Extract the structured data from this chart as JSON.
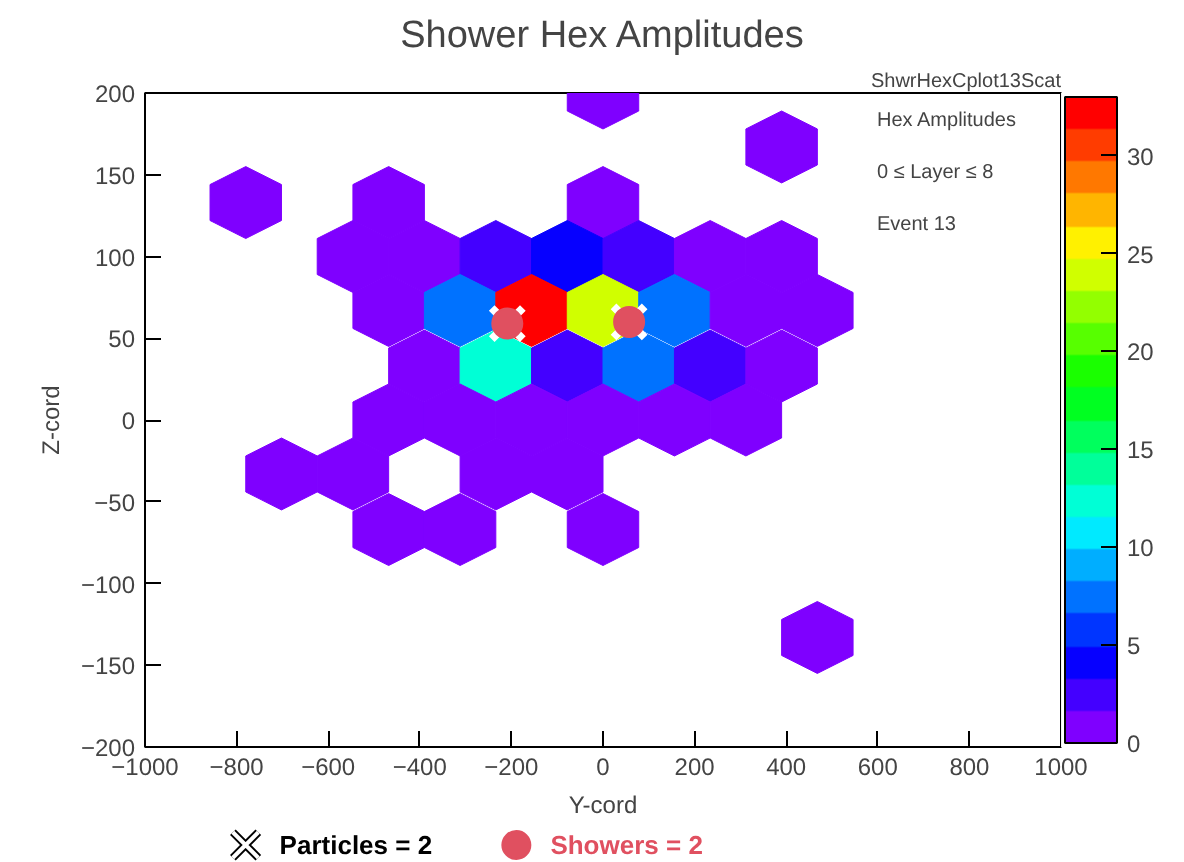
{
  "chart_data": {
    "type": "scatter",
    "title": "Shower Hex Amplitudes",
    "xlabel": "Y-cord",
    "ylabel": "Z-cord",
    "annotations": [
      "ShwrHexCplot13Scat",
      "Hex Amplitudes",
      "0 ≤ Layer ≤ 8",
      "Event 13"
    ],
    "xlim": [
      -1000,
      1000
    ],
    "xticks": [
      -1000,
      -800,
      -600,
      -400,
      -200,
      0,
      200,
      400,
      600,
      800,
      1000
    ],
    "ylim": [
      -200,
      200
    ],
    "yticks": [
      -200,
      -150,
      -100,
      -50,
      0,
      50,
      100,
      150,
      200
    ],
    "clim": [
      0,
      33
    ],
    "cticks": [
      0,
      5,
      10,
      15,
      20,
      25,
      30
    ],
    "legend": "bottom",
    "grid": false,
    "series": [
      {
        "type": "scatter",
        "x": [
          0,
          390,
          -780,
          -468,
          0,
          -546,
          -390,
          -234,
          -78,
          78,
          234,
          390,
          -468,
          -312,
          -156,
          0,
          156,
          312,
          468,
          -390,
          -234,
          -78,
          78,
          234,
          390,
          -468,
          -312,
          -156,
          0,
          156,
          312,
          -702,
          -546,
          -234,
          -78,
          -468,
          -312,
          0,
          468
        ],
        "values": [
          200,
          167,
          133,
          133,
          133,
          100,
          100,
          100,
          100,
          100,
          100,
          100,
          67,
          67,
          67,
          67,
          67,
          67,
          67,
          33,
          33,
          33,
          33,
          33,
          33,
          0,
          0,
          0,
          0,
          0,
          0,
          -33,
          -33,
          -33,
          -33,
          -67,
          -67,
          -67,
          -133
        ],
        "cvalues": [
          1,
          1,
          1,
          1,
          1,
          1,
          1,
          2.5,
          4,
          2.5,
          1,
          1,
          1,
          7.5,
          32,
          24,
          7.5,
          1,
          1,
          1,
          12.5,
          2.5,
          7.5,
          2.5,
          1,
          1,
          1,
          1,
          1,
          1,
          1,
          1,
          1,
          1,
          1,
          1,
          1,
          1,
          1
        ],
        "colors": [
          "#7f00ff",
          "#7f00ff",
          "#7f00ff",
          "#7f00ff",
          "#7f00ff",
          "#7f00ff",
          "#7f00ff",
          "#4300ff",
          "#0600ff",
          "#4300ff",
          "#7f00ff",
          "#7f00ff",
          "#7f00ff",
          "#0072ff",
          "#ff0000",
          "#d0ff00",
          "#0072ff",
          "#7f00ff",
          "#7f00ff",
          "#7f00ff",
          "#00ffd6",
          "#4300ff",
          "#0072ff",
          "#4300ff",
          "#7f00ff",
          "#7f00ff",
          "#7f00ff",
          "#7f00ff",
          "#7f00ff",
          "#7f00ff",
          "#7f00ff",
          "#7f00ff",
          "#7f00ff",
          "#7f00ff",
          "#7f00ff",
          "#7f00ff",
          "#7f00ff",
          "#7f00ff",
          "#7f00ff"
        ]
      },
      {
        "name": "Particles = 2",
        "type": "scatter",
        "marker": "cross",
        "color": "#ffffff",
        "x": [
          -209,
          57
        ],
        "values": [
          59,
          60
        ]
      },
      {
        "name": "Showers = 2",
        "type": "scatter",
        "marker": "circle",
        "color": "#e05060",
        "x": [
          -209,
          57
        ],
        "values": [
          59,
          60
        ]
      }
    ]
  }
}
